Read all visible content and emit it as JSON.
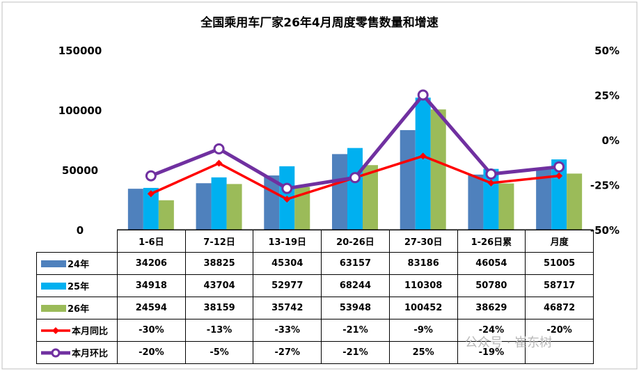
{
  "chart_data": {
    "type": "bar",
    "title": "全国乘用车厂家26年4月周度零售数量和增速",
    "categories": [
      "1-6日",
      "7-12日",
      "13-19日",
      "20-26日",
      "27-30日",
      "1-26日累",
      "月度"
    ],
    "series": [
      {
        "name": "24年",
        "values": [
          34206,
          38825,
          45304,
          63157,
          83186,
          46054,
          51005
        ],
        "display": [
          "34206",
          "38825",
          "45304",
          "63157",
          "83186",
          "46054",
          "51005"
        ],
        "color": "#4f81bd"
      },
      {
        "name": "25年",
        "values": [
          34918,
          43704,
          52977,
          68244,
          110308,
          50780,
          58717
        ],
        "display": [
          "34918",
          "43704",
          "52977",
          "68244",
          "110308",
          "50780",
          "58717"
        ],
        "color": "#00b0f0"
      },
      {
        "name": "26年",
        "values": [
          24594,
          38159,
          35742,
          53948,
          100452,
          38629,
          46872
        ],
        "display": [
          "24594",
          "38159",
          "35742",
          "53948",
          "100452",
          "38629",
          "46872"
        ],
        "color": "#9bbb59"
      }
    ],
    "line_series": [
      {
        "name": "本月同比",
        "values": [
          -30,
          -13,
          -33,
          -21,
          -9,
          -24,
          -20
        ],
        "display": [
          "-30%",
          "-13%",
          "-33%",
          "-21%",
          "-9%",
          "-24%",
          "-20%"
        ],
        "color": "#ff0000",
        "marker": "diamond",
        "axis": "right"
      },
      {
        "name": "本月环比",
        "values": [
          -20,
          -5,
          -27,
          -21,
          25,
          -19,
          -15
        ],
        "display": [
          "-20%",
          "-5%",
          "-27%",
          "-21%",
          "25%",
          "-19%",
          ""
        ],
        "color": "#7030a0",
        "marker": "circle",
        "axis": "right"
      }
    ],
    "y_left": {
      "ylim": [
        0,
        150000
      ],
      "ticks": [
        "150000",
        "100000",
        "50000",
        "0"
      ]
    },
    "y_right": {
      "ylim": [
        -50,
        50
      ],
      "ticks": [
        "50%",
        "25%",
        "0%",
        "-25%",
        "-50%"
      ]
    },
    "grid": false,
    "legend": "data-table"
  },
  "watermark": "公众号 · 崔东树"
}
